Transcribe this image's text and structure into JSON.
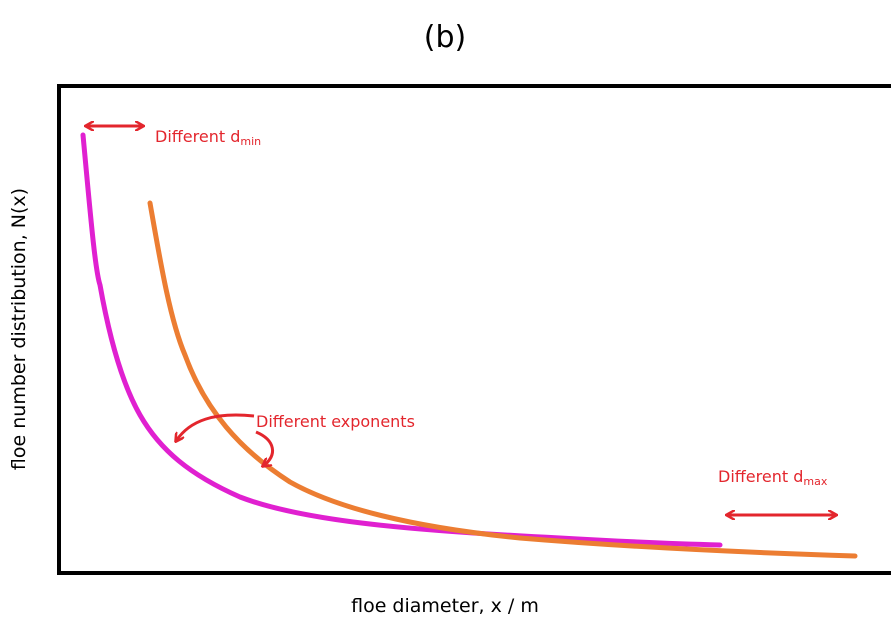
{
  "title": "(b)",
  "x_label": "floe diameter, x / m",
  "y_label": "floe number distribution, N(x)",
  "annotations": {
    "dmin": {
      "text": "Different d",
      "subscript": "min"
    },
    "exponents": {
      "text": "Different exponents"
    },
    "dmax": {
      "text": "Different d",
      "subscript": "max"
    }
  }
}
